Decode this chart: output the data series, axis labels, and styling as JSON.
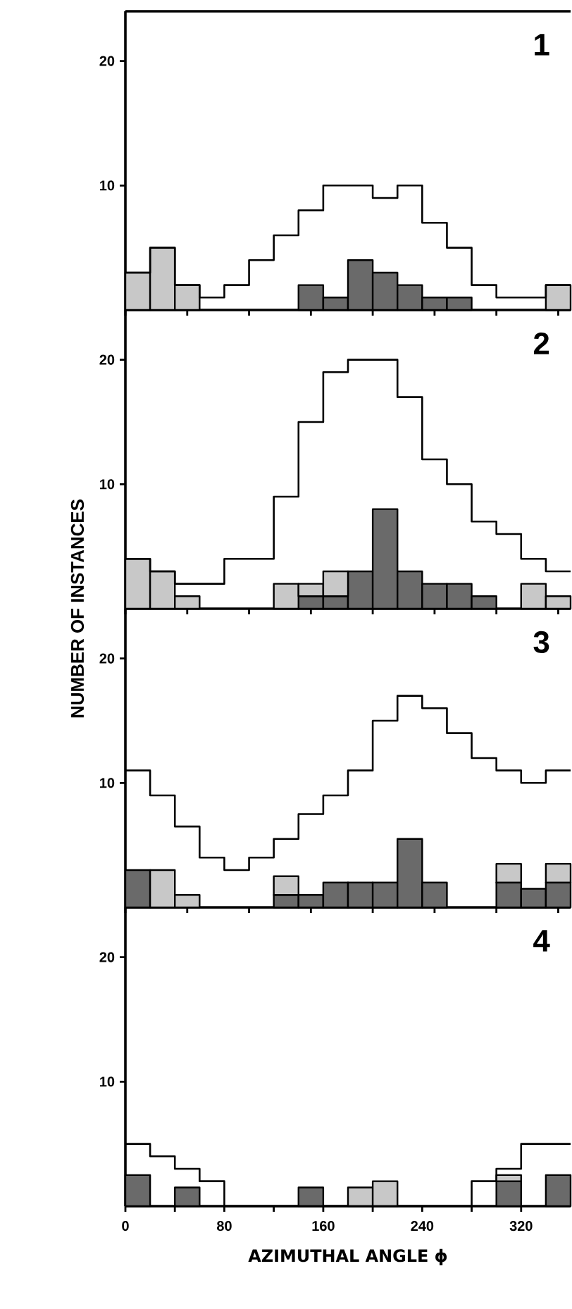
{
  "chart_data": [
    {
      "type": "bar",
      "title": "1",
      "x": [
        10,
        30,
        50,
        70,
        90,
        110,
        130,
        150,
        170,
        190,
        210,
        230,
        250,
        270,
        290,
        310,
        330,
        350
      ],
      "stacked": true,
      "xlim": [
        0,
        360
      ],
      "ylim": [
        0,
        24
      ],
      "yticks": [
        10,
        20
      ],
      "tick_labels": "y",
      "series": [
        {
          "type": "step",
          "color": "#000000",
          "x": [
            0,
            20,
            40,
            60,
            80,
            100,
            120,
            140,
            160,
            180,
            200,
            220,
            240,
            260,
            280,
            300,
            320,
            340,
            360
          ],
          "values": [
            3,
            5,
            2,
            1,
            2,
            4,
            6,
            8,
            10,
            10,
            9,
            10,
            7,
            5,
            2,
            1,
            1,
            2,
            2
          ]
        },
        {
          "color": "#6a6a6a",
          "values": [
            null,
            null,
            null,
            null,
            null,
            null,
            null,
            2,
            1,
            4,
            3,
            2,
            1,
            1,
            null,
            null,
            null,
            null
          ]
        },
        {
          "color": "#c8c8c8",
          "values": [
            3,
            5,
            2,
            null,
            null,
            null,
            null,
            null,
            null,
            null,
            null,
            null,
            null,
            null,
            null,
            null,
            null,
            2
          ]
        }
      ]
    },
    {
      "type": "bar",
      "title": "2",
      "ylabel": "NUMBER OF INSTANCES",
      "x": [
        10,
        30,
        50,
        70,
        90,
        110,
        130,
        150,
        170,
        190,
        210,
        230,
        250,
        270,
        290,
        310,
        330,
        350
      ],
      "stacked": true,
      "xlim": [
        0,
        360
      ],
      "ylim": [
        0,
        24
      ],
      "yticks": [
        10,
        20
      ],
      "tick_labels": "y",
      "series": [
        {
          "type": "step",
          "color": "#000000",
          "x": [
            0,
            20,
            40,
            60,
            80,
            100,
            120,
            140,
            160,
            180,
            200,
            220,
            240,
            260,
            280,
            300,
            320,
            340,
            360
          ],
          "values": [
            4,
            3,
            2,
            2,
            4,
            4,
            9,
            15,
            19,
            20,
            20,
            17,
            12,
            10,
            7,
            6,
            4,
            3,
            3
          ]
        },
        {
          "color": "#6a6a6a",
          "values": [
            null,
            null,
            null,
            null,
            null,
            null,
            null,
            1,
            1,
            3,
            8,
            3,
            2,
            2,
            1,
            null,
            null,
            null
          ]
        },
        {
          "color": "#c8c8c8",
          "values": [
            4,
            3,
            1,
            null,
            null,
            null,
            2,
            1,
            2,
            null,
            null,
            null,
            null,
            null,
            null,
            null,
            2,
            1
          ]
        }
      ]
    },
    {
      "type": "bar",
      "title": "3",
      "x": [
        10,
        30,
        50,
        70,
        90,
        110,
        130,
        150,
        170,
        190,
        210,
        230,
        250,
        270,
        290,
        310,
        330,
        350
      ],
      "stacked": true,
      "xlim": [
        0,
        360
      ],
      "ylim": [
        0,
        24
      ],
      "yticks": [
        10,
        20
      ],
      "tick_labels": "y",
      "series": [
        {
          "type": "step",
          "color": "#000000",
          "x": [
            0,
            20,
            40,
            60,
            80,
            100,
            120,
            140,
            160,
            180,
            200,
            220,
            240,
            260,
            280,
            300,
            320,
            340,
            360
          ],
          "values": [
            11,
            9,
            6.5,
            4,
            3,
            4,
            5.5,
            7.5,
            9,
            11,
            15,
            17,
            16,
            14,
            12,
            11,
            10,
            11,
            11
          ]
        },
        {
          "color": "#6a6a6a",
          "values": [
            3,
            null,
            null,
            null,
            null,
            null,
            1,
            1,
            2,
            2,
            2,
            5.5,
            2,
            null,
            null,
            2,
            1.5,
            2
          ]
        },
        {
          "color": "#c8c8c8",
          "values": [
            null,
            3,
            1,
            null,
            null,
            null,
            1.5,
            null,
            null,
            null,
            null,
            null,
            null,
            null,
            null,
            1.5,
            null,
            1.5
          ]
        }
      ]
    },
    {
      "type": "bar",
      "title": "4",
      "xlabel": "AZIMUTHAL ANGLE ϕ",
      "x": [
        10,
        30,
        50,
        70,
        90,
        110,
        130,
        150,
        170,
        190,
        210,
        230,
        250,
        270,
        290,
        310,
        330,
        350
      ],
      "stacked": true,
      "xlim": [
        0,
        360
      ],
      "ylim": [
        0,
        24
      ],
      "yticks": [
        10,
        20
      ],
      "xticks": [
        0,
        {
          "value": 40,
          "label": null
        },
        80,
        {
          "value": 120,
          "label": null
        },
        160,
        {
          "value": 200,
          "label": null
        },
        240,
        {
          "value": 280,
          "label": null
        },
        320
      ],
      "series": [
        {
          "type": "step",
          "color": "#000000",
          "x": [
            0,
            20,
            40,
            60,
            80,
            100,
            120,
            140,
            160,
            180,
            200,
            220,
            240,
            260,
            280,
            300,
            320,
            340,
            360
          ],
          "values": [
            5,
            4,
            3,
            2,
            0,
            0,
            0,
            0,
            0,
            0,
            0,
            0,
            0,
            0,
            2,
            3,
            5,
            5,
            5
          ]
        },
        {
          "color": "#6a6a6a",
          "values": [
            2.5,
            null,
            1.5,
            null,
            null,
            null,
            null,
            1.5,
            null,
            null,
            null,
            null,
            null,
            null,
            null,
            2,
            null,
            2.5
          ]
        },
        {
          "color": "#c8c8c8",
          "values": [
            null,
            null,
            null,
            null,
            null,
            null,
            null,
            null,
            null,
            1.5,
            2,
            null,
            null,
            null,
            null,
            0.5,
            null,
            null
          ]
        }
      ]
    }
  ]
}
